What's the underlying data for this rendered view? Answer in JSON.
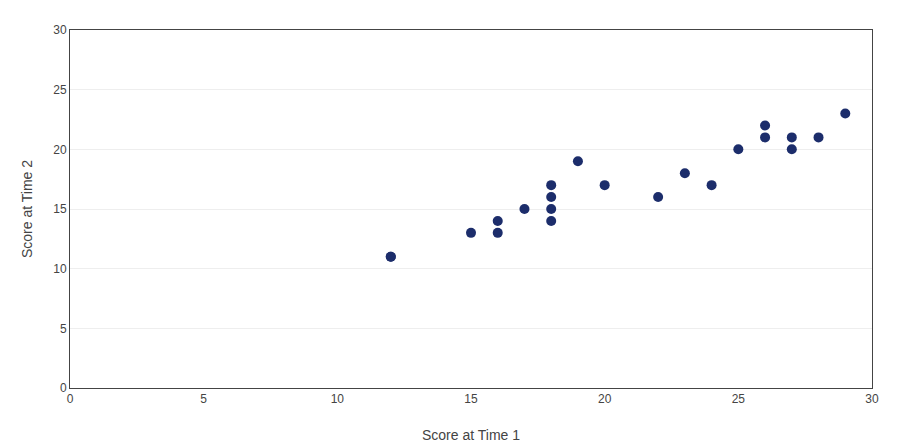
{
  "chart_data": {
    "type": "scatter",
    "x": [
      12,
      12,
      15,
      16,
      16,
      17,
      18,
      18,
      18,
      18,
      19,
      20,
      22,
      23,
      24,
      25,
      26,
      26,
      27,
      27,
      28,
      29
    ],
    "y": [
      11,
      11,
      13,
      13,
      14,
      15,
      14,
      15,
      16,
      17,
      19,
      17,
      16,
      18,
      17,
      20,
      21,
      22,
      20,
      21,
      21,
      23
    ],
    "color": "#1c2d6b",
    "xlabel": "Score at Time 1",
    "ylabel": "Score at Time 2",
    "xlim": [
      0,
      30
    ],
    "ylim": [
      0,
      30
    ],
    "xticks": [
      0,
      5,
      10,
      15,
      20,
      25,
      30
    ],
    "yticks": [
      0,
      5,
      10,
      15,
      20,
      25,
      30
    ],
    "grid": "y"
  }
}
